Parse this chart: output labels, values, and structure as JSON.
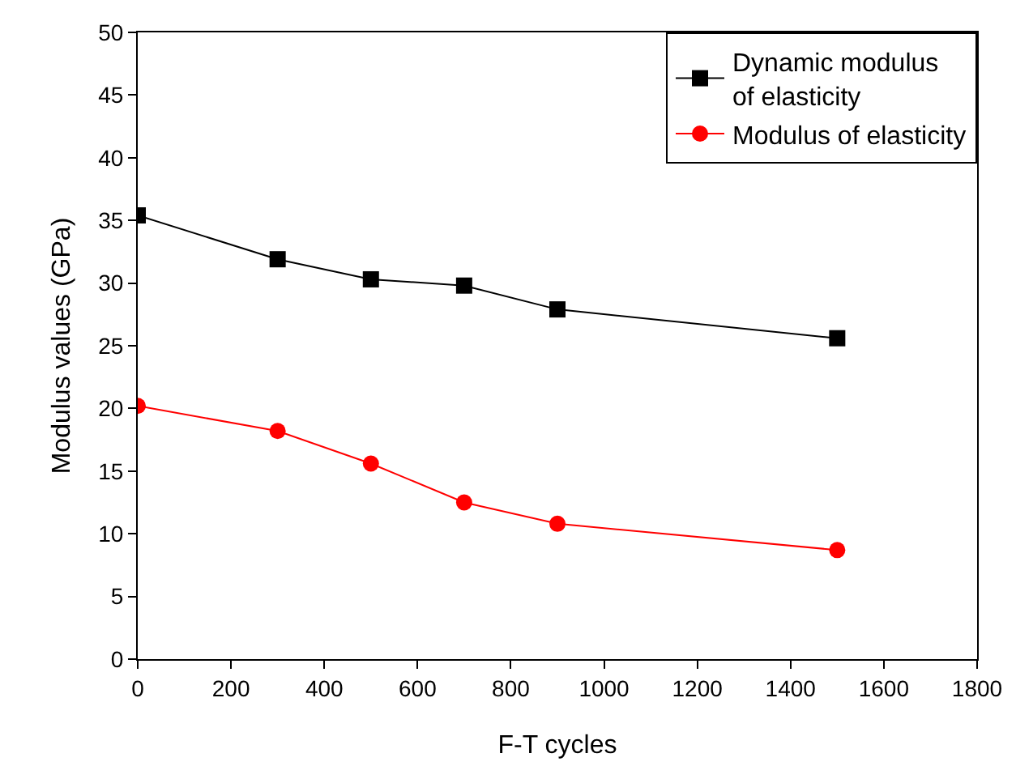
{
  "chart_data": {
    "type": "line",
    "xlabel": "F-T cycles",
    "ylabel": "Modulus values (GPa)",
    "x": [
      0,
      300,
      500,
      700,
      900,
      1500
    ],
    "series": [
      {
        "name": "Dynamic modulus\nof elasticity",
        "color": "#000000",
        "marker": "square",
        "values": [
          35.4,
          31.9,
          30.3,
          29.8,
          27.9,
          25.6
        ]
      },
      {
        "name": "Modulus of elasticity",
        "color": "#ff0000",
        "marker": "circle",
        "values": [
          20.2,
          18.2,
          15.6,
          12.5,
          10.8,
          8.7
        ]
      }
    ],
    "xlim": [
      0,
      1800
    ],
    "xticks": [
      0,
      200,
      400,
      600,
      800,
      1000,
      1200,
      1400,
      1600,
      1800
    ],
    "ylim": [
      0,
      50
    ],
    "yticks": [
      0,
      5,
      10,
      15,
      20,
      25,
      30,
      35,
      40,
      45,
      50
    ],
    "grid": false,
    "legend": "top right",
    "line_style": "solid"
  }
}
